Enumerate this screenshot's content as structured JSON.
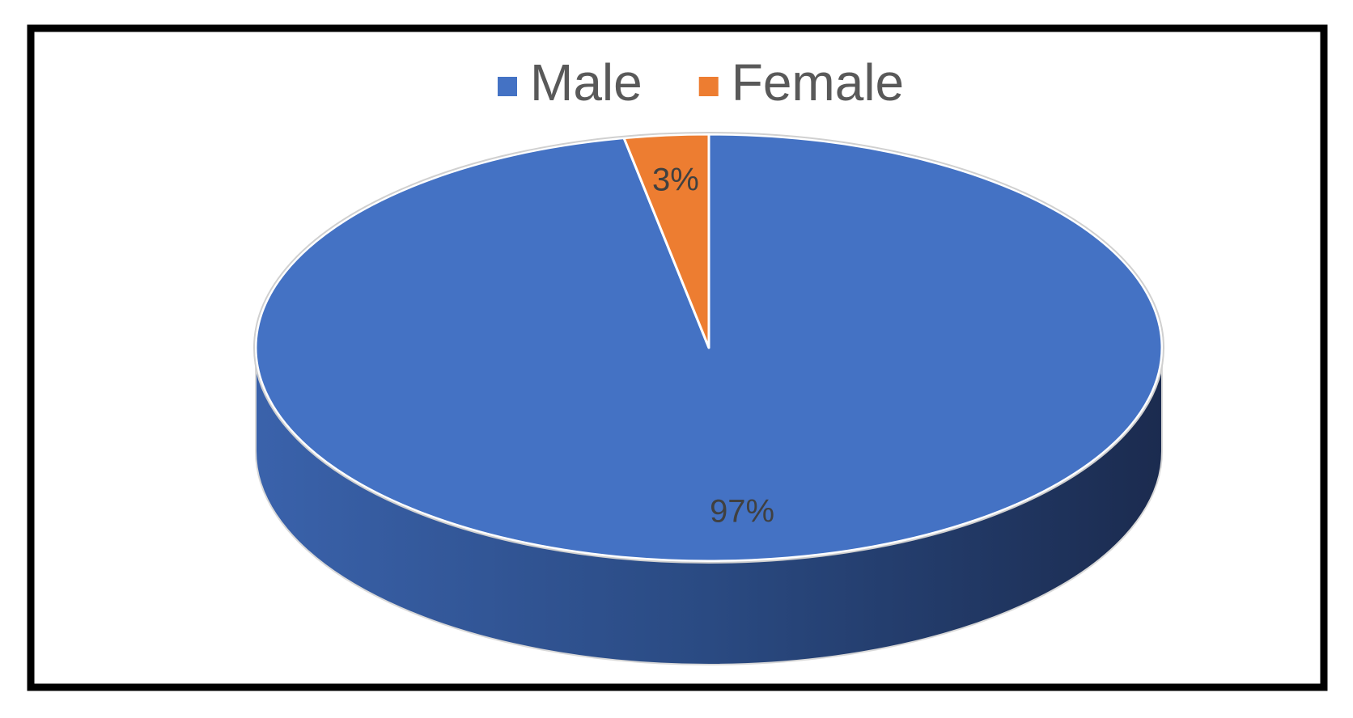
{
  "chart_data": {
    "type": "pie",
    "categories": [
      "Male",
      "Female"
    ],
    "values": [
      97,
      3
    ],
    "value_labels": [
      "97%",
      "3%"
    ],
    "colors": [
      "#4472c4",
      "#ed7d31"
    ],
    "legend": "top"
  }
}
